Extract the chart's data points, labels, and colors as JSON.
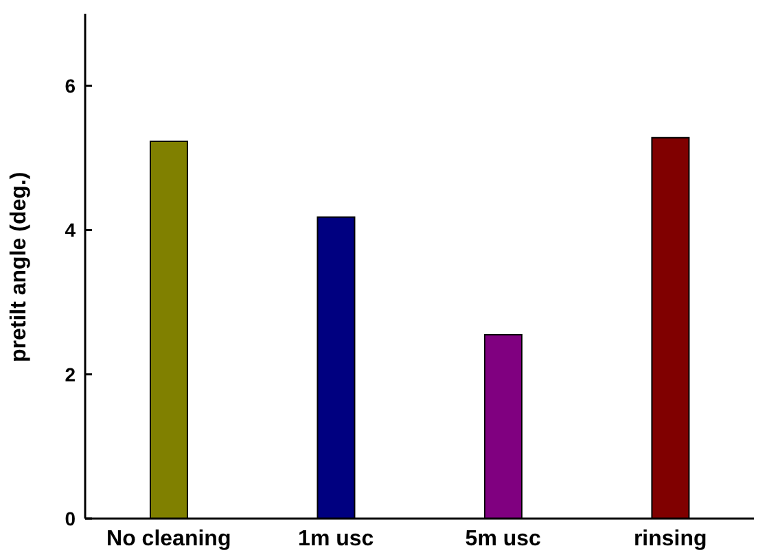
{
  "chart_data": {
    "type": "bar",
    "ylabel": "pretilt angle (deg.)",
    "categories": [
      "No cleaning",
      "1m usc",
      "5m usc",
      "rinsing"
    ],
    "values": [
      5.23,
      4.18,
      2.55,
      5.28
    ],
    "colors": [
      "#808000",
      "#000080",
      "#800080",
      "#800000"
    ],
    "ylim": [
      0,
      7
    ],
    "yticks": [
      0,
      2,
      4,
      6
    ],
    "grid": false,
    "legend": false
  }
}
